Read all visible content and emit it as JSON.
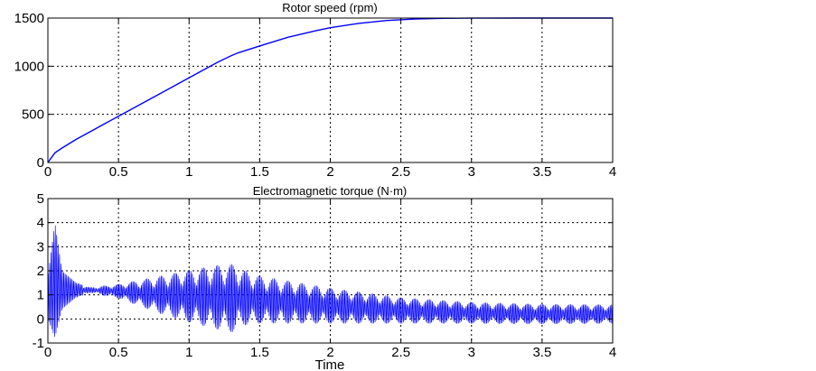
{
  "chart_data": [
    {
      "type": "line",
      "title": "Rotor speed (rpm)",
      "xlabel": "",
      "ylabel": "",
      "xlim": [
        0,
        4
      ],
      "ylim": [
        0,
        1500
      ],
      "xticks": [
        "0",
        "0.5",
        "1",
        "1.5",
        "2",
        "2.5",
        "3",
        "3.5",
        "4"
      ],
      "yticks": [
        "0",
        "500",
        "1000",
        "1500"
      ],
      "grid": true,
      "color": "#0000ff",
      "series": [
        {
          "name": "Rotor speed",
          "x": [
            0,
            0.02,
            0.05,
            0.1,
            0.2,
            0.3,
            0.4,
            0.5,
            0.6,
            0.7,
            0.8,
            0.9,
            1.0,
            1.1,
            1.2,
            1.3,
            1.35,
            1.5,
            1.7,
            1.9,
            2.0,
            2.2,
            2.4,
            2.6,
            2.8,
            3.0,
            3.3,
            4.0
          ],
          "y": [
            0,
            40,
            100,
            150,
            240,
            320,
            400,
            480,
            560,
            640,
            720,
            800,
            880,
            960,
            1040,
            1110,
            1140,
            1210,
            1300,
            1370,
            1400,
            1445,
            1475,
            1490,
            1497,
            1499,
            1500,
            1500
          ]
        }
      ]
    },
    {
      "type": "line",
      "title": "Electromagnetic torque (N·m)",
      "xlabel": "Time",
      "ylabel": "",
      "xlim": [
        0,
        4
      ],
      "ylim": [
        -1,
        5
      ],
      "xticks": [
        "0",
        "0.5",
        "1",
        "1.5",
        "2",
        "2.5",
        "3",
        "3.5",
        "4"
      ],
      "yticks": [
        "-1",
        "0",
        "1",
        "2",
        "3",
        "4",
        "5"
      ],
      "grid": true,
      "color": "#0000ff",
      "series": [
        {
          "name": "Electromagnetic torque",
          "description": "oscillating envelope: mean and amplitude vs time",
          "x": [
            0.0,
            0.05,
            0.1,
            0.2,
            0.3,
            0.5,
            0.8,
            1.0,
            1.2,
            1.33,
            1.36,
            1.5,
            2.0,
            2.5,
            3.0,
            3.5,
            4.0
          ],
          "mean": [
            0.9,
            1.6,
            1.2,
            1.2,
            1.2,
            1.15,
            1.0,
            0.95,
            0.9,
            0.85,
            0.9,
            0.8,
            0.55,
            0.35,
            0.25,
            0.2,
            0.2
          ],
          "amplitude": [
            0.9,
            2.4,
            0.8,
            0.3,
            0.1,
            0.3,
            0.8,
            1.1,
            1.35,
            1.45,
            1.2,
            1.0,
            0.75,
            0.55,
            0.45,
            0.42,
            0.4
          ]
        }
      ]
    }
  ]
}
